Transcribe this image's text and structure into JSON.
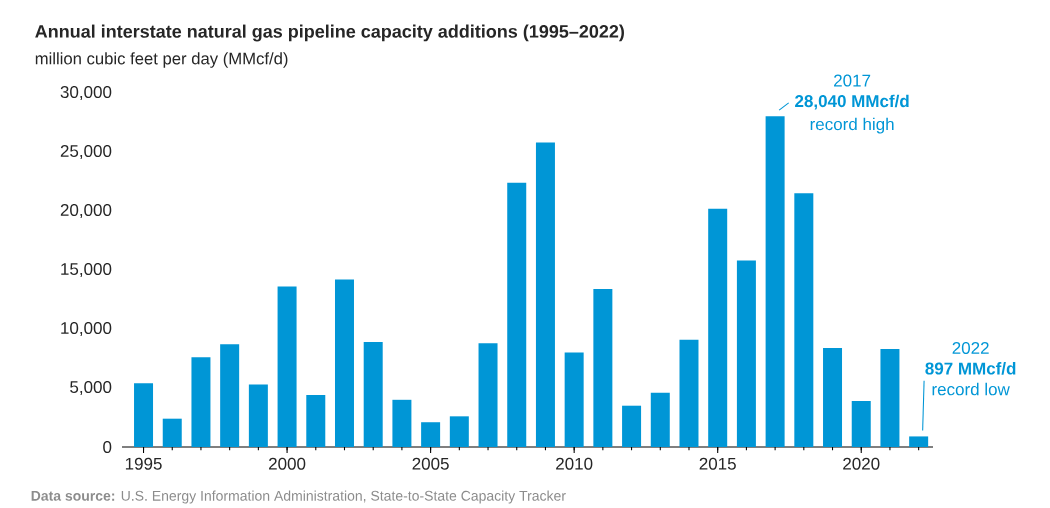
{
  "chart_data": {
    "type": "bar",
    "title": "Annual interstate natural gas pipeline capacity additions (1995–2022)",
    "subtitle": "million cubic feet per day (MMcf/d)",
    "x": [
      1995,
      1996,
      1997,
      1998,
      1999,
      2000,
      2001,
      2002,
      2003,
      2004,
      2005,
      2006,
      2007,
      2008,
      2009,
      2010,
      2011,
      2012,
      2013,
      2014,
      2015,
      2016,
      2017,
      2018,
      2019,
      2020,
      2021,
      2022
    ],
    "values": [
      5400,
      2400,
      7600,
      8700,
      5300,
      13600,
      4400,
      14200,
      8900,
      4000,
      2100,
      2600,
      8800,
      22400,
      25800,
      8000,
      13400,
      3500,
      4600,
      9100,
      20200,
      15800,
      28040,
      21500,
      8400,
      3900,
      8300,
      897
    ],
    "color": "#0096d6",
    "xlim": [
      1994.25,
      2022.5
    ],
    "xticks": [
      1995,
      2000,
      2005,
      2010,
      2015,
      2020
    ],
    "ylim": [
      0,
      30000
    ],
    "yticks": [
      {
        "value": 0,
        "label": "0"
      },
      {
        "value": 5000,
        "label": "5,000"
      },
      {
        "value": 10000,
        "label": "10,000"
      },
      {
        "value": 15000,
        "label": "15,000"
      },
      {
        "value": 20000,
        "label": "20,000"
      },
      {
        "value": 25000,
        "label": "25,000"
      },
      {
        "value": 30000,
        "label": "30,000"
      }
    ],
    "annotations": [
      "2017",
      {
        "text": "**28,040 MMcf/d**",
        "x": 2017,
        "y": 28040
      },
      "record high",
      "2022",
      {
        "text": "**897 MMcf/d**",
        "x": 2022,
        "y": 897
      },
      "record low",
      "**Data source:** U.S. Energy Information Administration, State-to-State Capacity Tracker"
    ]
  }
}
